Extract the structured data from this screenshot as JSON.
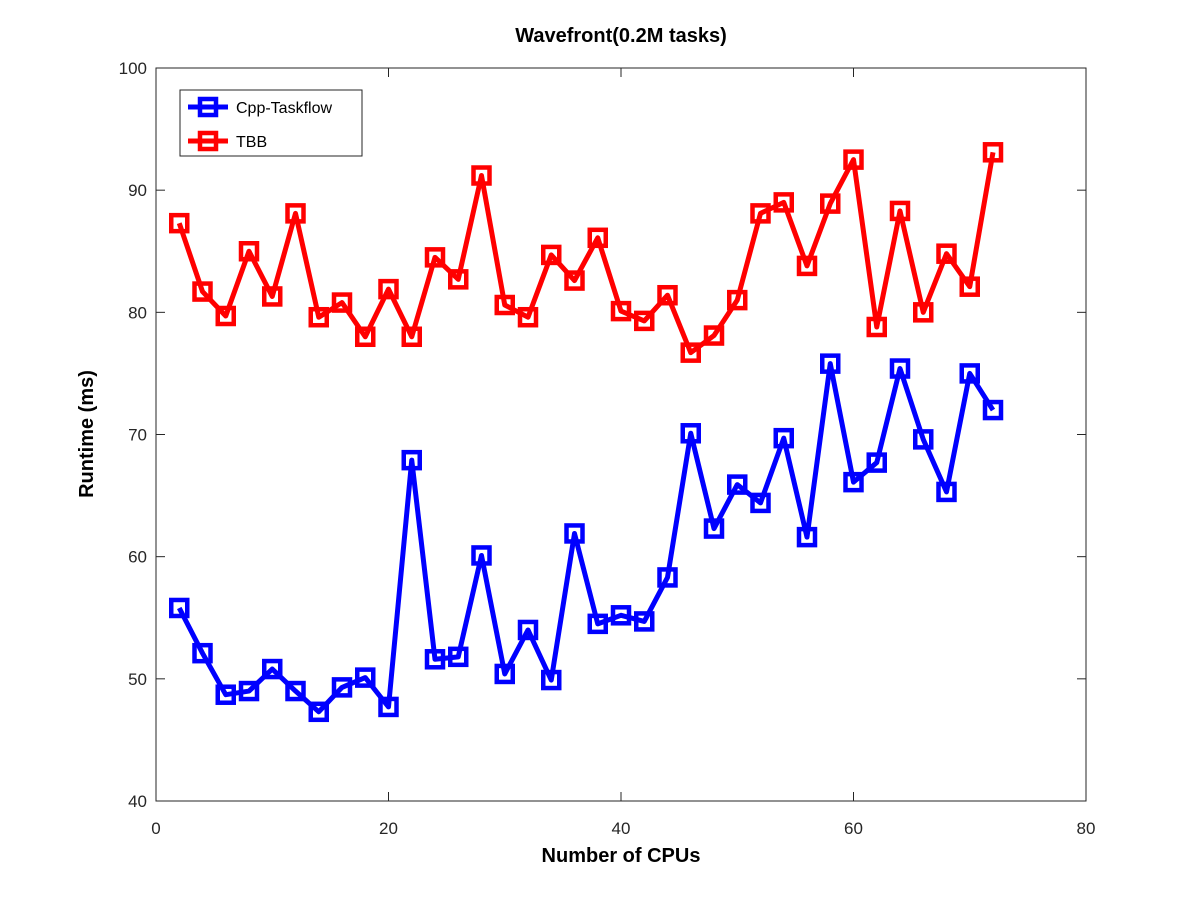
{
  "chart_data": {
    "type": "line",
    "title": "Wavefront(0.2M tasks)",
    "xlabel": "Number of CPUs",
    "ylabel": "Runtime (ms)",
    "xlim": [
      0,
      80
    ],
    "ylim": [
      40,
      100
    ],
    "xticks": [
      0,
      20,
      40,
      60,
      80
    ],
    "yticks": [
      40,
      50,
      60,
      70,
      80,
      90,
      100
    ],
    "grid": false,
    "legend_position": "top-left",
    "x": [
      2,
      4,
      6,
      8,
      10,
      12,
      14,
      16,
      18,
      20,
      22,
      24,
      26,
      28,
      30,
      32,
      34,
      36,
      38,
      40,
      42,
      44,
      46,
      48,
      50,
      52,
      54,
      56,
      58,
      60,
      62,
      64,
      66,
      68,
      70,
      72
    ],
    "series": [
      {
        "name": "Cpp-Taskflow",
        "color": "#0000ff",
        "marker": "square",
        "values": [
          55.8,
          52.1,
          48.7,
          49.0,
          50.8,
          49.0,
          47.3,
          49.3,
          50.1,
          47.7,
          67.9,
          51.6,
          51.8,
          60.1,
          50.4,
          54.0,
          49.9,
          61.9,
          54.5,
          55.2,
          54.7,
          58.3,
          70.1,
          62.3,
          65.9,
          64.4,
          69.7,
          61.6,
          75.8,
          66.1,
          67.7,
          75.4,
          69.6,
          65.3,
          75.0,
          72.0
        ]
      },
      {
        "name": "TBB",
        "color": "#ff0000",
        "marker": "square",
        "values": [
          87.3,
          81.7,
          79.7,
          85.0,
          81.3,
          88.1,
          79.6,
          80.8,
          78.0,
          81.9,
          78.0,
          84.5,
          82.7,
          91.2,
          80.6,
          79.6,
          84.7,
          82.6,
          86.1,
          80.1,
          79.3,
          81.4,
          76.7,
          78.1,
          81.0,
          88.1,
          89.0,
          83.8,
          88.9,
          92.5,
          78.8,
          88.3,
          80.0,
          84.8,
          82.1,
          93.1
        ]
      }
    ]
  }
}
